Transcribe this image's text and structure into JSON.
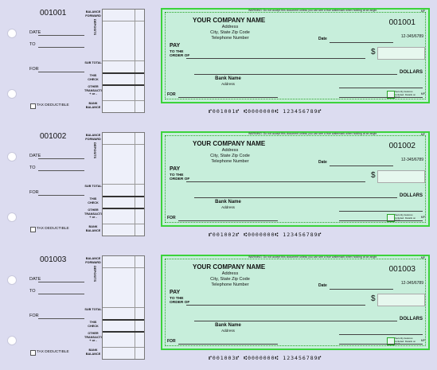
{
  "checks": [
    {
      "stub": {
        "number": "001001",
        "date_label": "DATE",
        "to_label": "TO",
        "for_label": "FOR",
        "balance_forward": "BALANCE FORWARD",
        "deposits": "DEPOSITS",
        "sub_total": "SUB TOTAL",
        "this_check": "THIS CHECK",
        "other_transaction": "OTHER TRANSACTION + or -",
        "bank_balance": "BANK BALANCE",
        "tax_deductible": "TAX DEDUCTIBLE"
      },
      "check": {
        "warning": "WARNING: Do not accept this document unless you can see a true watermark when holding at an angle.",
        "mp": "MP",
        "company": "YOUR COMPANY NAME",
        "address": "Address",
        "city": "City, State Zip Code",
        "phone": "Telephone Number",
        "number": "001001",
        "routing": "12-345/6789",
        "date_label": "Date",
        "pay": "PAY",
        "to_the_order_of": "TO THE ORDER OF",
        "dollar_sign": "$",
        "dollars": "DOLLARS",
        "bank_name": "Bank Name",
        "bank_address": "Address",
        "for_label": "FOR",
        "security_text": "Security features included. Details on back."
      },
      "micr": "⑈001001⑈ ⑆0000000⑆ 123456789⑈"
    },
    {
      "stub": {
        "number": "001002",
        "date_label": "DATE",
        "to_label": "TO",
        "for_label": "FOR",
        "balance_forward": "BALANCE FORWARD",
        "deposits": "DEPOSITS",
        "sub_total": "SUB TOTAL",
        "this_check": "THIS CHECK",
        "other_transaction": "OTHER TRANSACTION + or -",
        "bank_balance": "BANK BALANCE",
        "tax_deductible": "TAX DEDUCTIBLE"
      },
      "check": {
        "warning": "WARNING: Do not accept this document unless you can see a true watermark when holding at an angle.",
        "mp": "MP",
        "company": "YOUR COMPANY NAME",
        "address": "Address",
        "city": "City, State Zip Code",
        "phone": "Telephone Number",
        "number": "001002",
        "routing": "12-345/6789",
        "date_label": "Date",
        "pay": "PAY",
        "to_the_order_of": "TO THE ORDER OF",
        "dollar_sign": "$",
        "dollars": "DOLLARS",
        "bank_name": "Bank Name",
        "bank_address": "Address",
        "for_label": "FOR",
        "security_text": "Security features included. Details on back."
      },
      "micr": "⑈001002⑈ ⑆0000000⑆ 123456789⑈"
    },
    {
      "stub": {
        "number": "001003",
        "date_label": "DATE",
        "to_label": "TO",
        "for_label": "FOR",
        "balance_forward": "BALANCE FORWARD",
        "deposits": "DEPOSITS",
        "sub_total": "SUB TOTAL",
        "this_check": "THIS CHECK",
        "other_transaction": "OTHER TRANSACTION + or -",
        "bank_balance": "BANK BALANCE",
        "tax_deductible": "TAX DEDUCTIBLE"
      },
      "check": {
        "warning": "WARNING: Do not accept this document unless you can see a true watermark when holding at an angle.",
        "mp": "MP",
        "company": "YOUR COMPANY NAME",
        "address": "Address",
        "city": "City, State Zip Code",
        "phone": "Telephone Number",
        "number": "001003",
        "routing": "12-345/6789",
        "date_label": "Date",
        "pay": "PAY",
        "to_the_order_of": "TO THE ORDER OF",
        "dollar_sign": "$",
        "dollars": "DOLLARS",
        "bank_name": "Bank Name",
        "bank_address": "Address",
        "for_label": "FOR",
        "security_text": "Security features included. Details on back."
      },
      "micr": "⑈001003⑈ ⑆0000000⑆ 123456789⑈"
    }
  ]
}
